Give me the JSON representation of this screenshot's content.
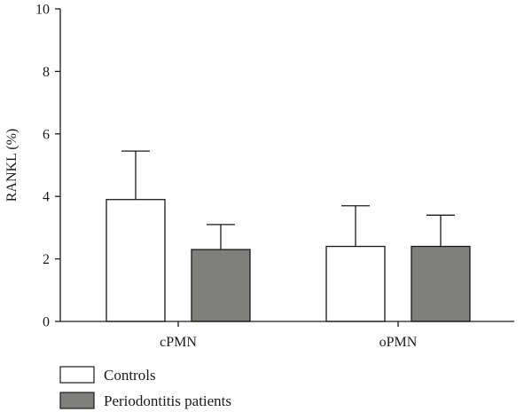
{
  "chart_data": {
    "type": "bar",
    "title": "",
    "xlabel": "",
    "ylabel": "RANKL (%)",
    "ylim": [
      0,
      10
    ],
    "yticks": [
      0,
      2,
      4,
      6,
      8,
      10
    ],
    "grid": false,
    "legend_position": "bottom-left",
    "categories": [
      "cPMN",
      "oPMN"
    ],
    "series": [
      {
        "name": "Controls",
        "values": [
          3.9,
          2.4
        ],
        "errors": [
          1.55,
          1.3
        ],
        "color": "#ffffff"
      },
      {
        "name": "Periodontitis patients",
        "values": [
          2.3,
          2.4
        ],
        "errors": [
          0.8,
          1.0
        ],
        "color": "#7f7f7d"
      }
    ]
  }
}
